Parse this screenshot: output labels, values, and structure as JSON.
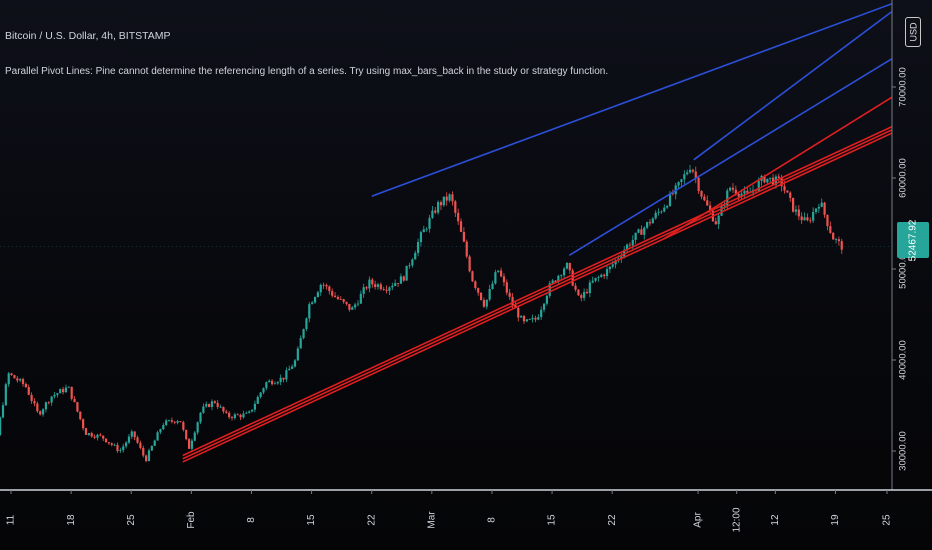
{
  "header": {
    "title": "Bitcoin / U.S. Dollar, 4h, BITSTAMP",
    "message": "Parallel Pivot Lines: Pine cannot determine the referencing length of a series. Try using max_bars_back in the study or strategy function.",
    "currency_button": "USD"
  },
  "current_price": "52467.92",
  "colors": {
    "background": "#0d0f17",
    "up_candle": "#26a69a",
    "down_candle": "#ef5350",
    "support_line": "#e01f1f",
    "resistance_line": "#2c4fd8",
    "axis_text": "#d1d4dc",
    "price_tag": "#26a69a"
  },
  "chart_data": {
    "type": "candlestick",
    "interval": "4h",
    "symbol": "Bitcoin / U.S. Dollar",
    "exchange": "BITSTAMP",
    "y_ticks": [
      "30000.00",
      "40000.00",
      "50000.00",
      "60000.00",
      "70000.00"
    ],
    "x_ticks": [
      "11",
      "18",
      "25",
      "Feb",
      "8",
      "15",
      "22",
      "Mar",
      "8",
      "15",
      "22",
      "Apr",
      "12:00",
      "12",
      "19",
      "25"
    ],
    "y_range": [
      26500,
      76000
    ],
    "x_range_days": [
      0,
      105
    ],
    "x_tick_days": [
      5,
      12,
      19,
      26,
      33,
      40,
      47,
      54,
      61,
      68,
      75,
      85,
      89.5,
      94,
      101,
      107
    ],
    "price_path": [
      [
        -5,
        37500
      ],
      [
        -3,
        40800
      ],
      [
        -1,
        41500
      ],
      [
        1,
        36500
      ],
      [
        2.5,
        34500
      ],
      [
        3.5,
        30500
      ],
      [
        5,
        38500
      ],
      [
        7,
        37200
      ],
      [
        8.5,
        34000
      ],
      [
        10,
        36000
      ],
      [
        12,
        37000
      ],
      [
        14,
        32000
      ],
      [
        16,
        31500
      ],
      [
        18,
        30000
      ],
      [
        19.5,
        32000
      ],
      [
        21,
        29000
      ],
      [
        23,
        33000
      ],
      [
        25,
        33500
      ],
      [
        26,
        30200
      ],
      [
        27.5,
        34500
      ],
      [
        29,
        35500
      ],
      [
        30.5,
        33800
      ],
      [
        33,
        34000
      ],
      [
        35,
        37500
      ],
      [
        37,
        38000
      ],
      [
        38.5,
        40000
      ],
      [
        40,
        46000
      ],
      [
        41.5,
        48500
      ],
      [
        43,
        47000
      ],
      [
        45,
        45500
      ],
      [
        47,
        48500
      ],
      [
        49,
        48000
      ],
      [
        51,
        49000
      ],
      [
        53,
        53500
      ],
      [
        55,
        57000
      ],
      [
        56.5,
        58000
      ],
      [
        58,
        53000
      ],
      [
        59,
        49000
      ],
      [
        60.5,
        46000
      ],
      [
        62,
        50000
      ],
      [
        63.5,
        46500
      ],
      [
        65,
        44000
      ],
      [
        66.5,
        44500
      ],
      [
        68,
        48000
      ],
      [
        70,
        50500
      ],
      [
        71.5,
        46500
      ],
      [
        73,
        48500
      ],
      [
        75,
        50000
      ],
      [
        77,
        52500
      ],
      [
        79,
        54500
      ],
      [
        81,
        56500
      ],
      [
        83,
        59000
      ],
      [
        84.5,
        61500
      ],
      [
        86,
        57500
      ],
      [
        87.5,
        55000
      ],
      [
        89,
        59000
      ],
      [
        91,
        58000
      ],
      [
        93,
        60000
      ],
      [
        95,
        59500
      ],
      [
        96.5,
        56500
      ],
      [
        98,
        55000
      ],
      [
        99.5,
        57500
      ],
      [
        101,
        53500
      ],
      [
        102,
        52500
      ]
    ],
    "trend_lines": [
      {
        "color": "#e01f1f",
        "from": [
          25,
          28800
        ],
        "to": [
          110,
          66000
        ],
        "parallels": 3
      },
      {
        "color": "#e01f1f",
        "from": [
          81,
          53300
        ],
        "to": [
          110,
          70300
        ]
      },
      {
        "color": "#2c4fd8",
        "from": [
          47,
          58000
        ],
        "to": [
          110,
          80000
        ]
      },
      {
        "color": "#2c4fd8",
        "from": [
          70,
          51500
        ],
        "to": [
          110,
          74500
        ]
      },
      {
        "color": "#2c4fd8",
        "from": [
          84.5,
          62000
        ],
        "to": [
          110,
          80000
        ]
      }
    ]
  }
}
